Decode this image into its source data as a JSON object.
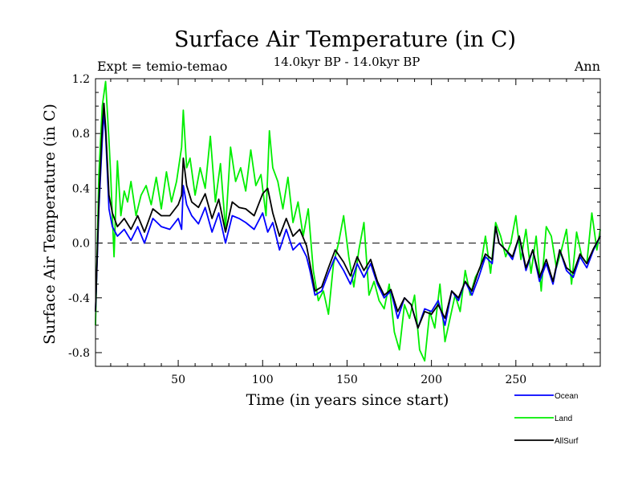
{
  "chart_data": {
    "type": "line",
    "title": "Surface Air Temperature (in C)",
    "subtitle": "14.0kyr BP - 14.0kyr BP",
    "left_label": "Expt = temio-temao",
    "right_label": "Ann",
    "xlabel": "Time (in years since start)",
    "ylabel": "Surface Air Temperature (in C)",
    "xlim": [
      1,
      300
    ],
    "ylim": [
      -0.9,
      1.2
    ],
    "x_ticks": [
      50,
      100,
      150,
      200,
      250
    ],
    "x_tick_labels": [
      "50",
      "100",
      "150",
      "200",
      "250"
    ],
    "y_ticks": [
      -0.8,
      -0.4,
      0.0,
      0.4,
      0.8,
      1.2
    ],
    "y_tick_labels": [
      "-0.8",
      "-0.4",
      "0.0",
      "0.4",
      "0.8",
      "1.2"
    ],
    "reference_line": 0.0,
    "grid": false,
    "legend_position": "bottom-right, below plot",
    "series": [
      {
        "name": "Ocean",
        "color": "#0000ff",
        "x": [
          1,
          3,
          5,
          6,
          7,
          9,
          11,
          14,
          18,
          22,
          26,
          30,
          35,
          40,
          45,
          50,
          52,
          53,
          55,
          58,
          62,
          66,
          70,
          74,
          78,
          82,
          86,
          90,
          95,
          100,
          103,
          106,
          110,
          114,
          118,
          122,
          126,
          128,
          131,
          135,
          139,
          143,
          148,
          152,
          156,
          160,
          164,
          168,
          172,
          176,
          180,
          184,
          188,
          192,
          196,
          200,
          204,
          208,
          212,
          216,
          220,
          224,
          228,
          232,
          236,
          238,
          240,
          244,
          248,
          252,
          256,
          260,
          264,
          268,
          272,
          276,
          280,
          284,
          288,
          292,
          296,
          300
        ],
        "values": [
          -0.5,
          0.25,
          0.75,
          0.95,
          0.8,
          0.25,
          0.12,
          0.05,
          0.1,
          0.02,
          0.12,
          0.0,
          0.18,
          0.12,
          0.1,
          0.18,
          0.1,
          0.42,
          0.28,
          0.2,
          0.14,
          0.26,
          0.08,
          0.22,
          0.0,
          0.2,
          0.18,
          0.15,
          0.1,
          0.22,
          0.08,
          0.15,
          -0.05,
          0.1,
          -0.05,
          0.0,
          -0.1,
          -0.2,
          -0.38,
          -0.35,
          -0.22,
          -0.1,
          -0.2,
          -0.3,
          -0.15,
          -0.25,
          -0.15,
          -0.3,
          -0.4,
          -0.35,
          -0.55,
          -0.4,
          -0.45,
          -0.62,
          -0.48,
          -0.5,
          -0.42,
          -0.6,
          -0.35,
          -0.42,
          -0.28,
          -0.38,
          -0.25,
          -0.1,
          -0.15,
          0.12,
          0.0,
          -0.05,
          -0.12,
          0.05,
          -0.2,
          -0.05,
          -0.28,
          -0.15,
          -0.3,
          -0.05,
          -0.2,
          -0.25,
          -0.1,
          -0.18,
          -0.05,
          0.05
        ]
      },
      {
        "name": "Land",
        "color": "#00ee00",
        "x": [
          1,
          3,
          5,
          7,
          9,
          10,
          12,
          14,
          16,
          18,
          20,
          22,
          25,
          28,
          31,
          34,
          37,
          40,
          43,
          46,
          49,
          52,
          53,
          55,
          57,
          60,
          63,
          66,
          69,
          72,
          75,
          78,
          81,
          84,
          87,
          90,
          93,
          96,
          99,
          102,
          104,
          106,
          109,
          112,
          115,
          118,
          121,
          124,
          127,
          130,
          133,
          136,
          139,
          142,
          145,
          148,
          151,
          154,
          157,
          160,
          163,
          166,
          169,
          172,
          175,
          178,
          181,
          184,
          187,
          190,
          193,
          196,
          199,
          202,
          205,
          208,
          211,
          214,
          217,
          220,
          223,
          226,
          229,
          232,
          235,
          238,
          241,
          244,
          247,
          250,
          253,
          256,
          259,
          262,
          265,
          268,
          271,
          274,
          277,
          280,
          283,
          286,
          289,
          292,
          295,
          298,
          300
        ],
        "values": [
          -0.6,
          0.5,
          1.0,
          1.18,
          0.75,
          0.5,
          -0.1,
          0.6,
          0.2,
          0.38,
          0.3,
          0.45,
          0.2,
          0.35,
          0.42,
          0.28,
          0.48,
          0.25,
          0.52,
          0.3,
          0.45,
          0.7,
          0.97,
          0.55,
          0.62,
          0.35,
          0.55,
          0.4,
          0.78,
          0.3,
          0.58,
          0.1,
          0.7,
          0.45,
          0.55,
          0.38,
          0.68,
          0.42,
          0.5,
          0.2,
          0.82,
          0.55,
          0.45,
          0.25,
          0.48,
          0.15,
          0.3,
          0.05,
          0.25,
          -0.2,
          -0.42,
          -0.35,
          -0.52,
          -0.15,
          0.0,
          0.2,
          -0.1,
          -0.32,
          -0.05,
          0.15,
          -0.38,
          -0.28,
          -0.42,
          -0.48,
          -0.3,
          -0.65,
          -0.78,
          -0.45,
          -0.55,
          -0.38,
          -0.78,
          -0.86,
          -0.5,
          -0.62,
          -0.3,
          -0.72,
          -0.55,
          -0.38,
          -0.5,
          -0.2,
          -0.38,
          -0.25,
          -0.18,
          0.05,
          -0.22,
          0.15,
          0.05,
          -0.1,
          0.0,
          0.2,
          -0.12,
          0.1,
          -0.22,
          0.05,
          -0.35,
          0.12,
          0.05,
          -0.18,
          -0.05,
          0.1,
          -0.3,
          0.08,
          -0.1,
          -0.15,
          0.22,
          -0.05,
          0.1
        ]
      },
      {
        "name": "AllSurf",
        "color": "#000000",
        "x": [
          1,
          3,
          5,
          6,
          7,
          9,
          11,
          14,
          18,
          22,
          26,
          30,
          35,
          40,
          45,
          50,
          52,
          53,
          55,
          58,
          62,
          66,
          70,
          74,
          78,
          82,
          86,
          90,
          95,
          100,
          103,
          106,
          110,
          114,
          118,
          122,
          126,
          128,
          131,
          135,
          139,
          143,
          148,
          152,
          156,
          160,
          164,
          168,
          172,
          176,
          180,
          184,
          188,
          192,
          196,
          200,
          204,
          208,
          212,
          216,
          220,
          224,
          228,
          232,
          236,
          238,
          240,
          244,
          248,
          252,
          256,
          260,
          264,
          268,
          272,
          276,
          280,
          284,
          288,
          292,
          296,
          300
        ],
        "values": [
          -0.5,
          0.3,
          0.85,
          1.02,
          0.85,
          0.35,
          0.22,
          0.12,
          0.18,
          0.1,
          0.2,
          0.08,
          0.25,
          0.2,
          0.2,
          0.28,
          0.35,
          0.62,
          0.42,
          0.3,
          0.26,
          0.36,
          0.18,
          0.32,
          0.08,
          0.3,
          0.26,
          0.25,
          0.2,
          0.36,
          0.4,
          0.22,
          0.05,
          0.18,
          0.05,
          0.1,
          -0.02,
          -0.15,
          -0.35,
          -0.32,
          -0.18,
          -0.05,
          -0.14,
          -0.24,
          -0.1,
          -0.2,
          -0.12,
          -0.28,
          -0.38,
          -0.34,
          -0.5,
          -0.4,
          -0.45,
          -0.62,
          -0.5,
          -0.52,
          -0.45,
          -0.55,
          -0.35,
          -0.4,
          -0.28,
          -0.35,
          -0.2,
          -0.08,
          -0.12,
          0.12,
          0.0,
          -0.05,
          -0.1,
          0.05,
          -0.18,
          -0.05,
          -0.25,
          -0.12,
          -0.28,
          -0.05,
          -0.18,
          -0.22,
          -0.08,
          -0.15,
          -0.04,
          0.05
        ]
      }
    ]
  }
}
